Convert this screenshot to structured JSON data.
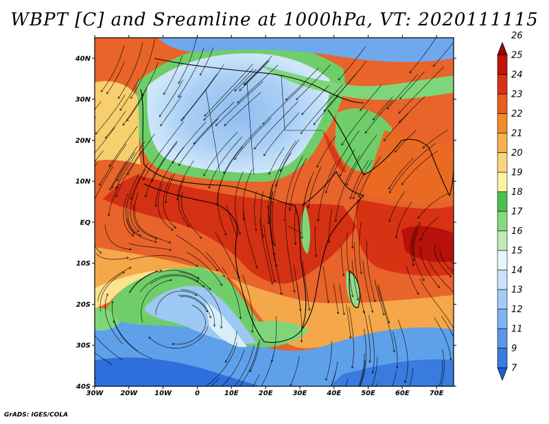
{
  "title": "WBPT [C] and Sreamline at 1000hPa, VT: 2020111115",
  "credit": "GrADS: IGES/COLA",
  "map": {
    "lon_range": [
      -30,
      75
    ],
    "lat_range": [
      -40,
      45
    ],
    "lon_ticks": [
      {
        "value": -30,
        "label": "30W"
      },
      {
        "value": -20,
        "label": "20W"
      },
      {
        "value": -10,
        "label": "10W"
      },
      {
        "value": 0,
        "label": "0"
      },
      {
        "value": 10,
        "label": "10E"
      },
      {
        "value": 20,
        "label": "20E"
      },
      {
        "value": 30,
        "label": "30E"
      },
      {
        "value": 40,
        "label": "40E"
      },
      {
        "value": 50,
        "label": "50E"
      },
      {
        "value": 60,
        "label": "60E"
      },
      {
        "value": 70,
        "label": "70E"
      }
    ],
    "lat_ticks": [
      {
        "value": 40,
        "label": "40N"
      },
      {
        "value": 30,
        "label": "30N"
      },
      {
        "value": 20,
        "label": "20N"
      },
      {
        "value": 10,
        "label": "10N"
      },
      {
        "value": 0,
        "label": "EQ"
      },
      {
        "value": -10,
        "label": "10S"
      },
      {
        "value": -20,
        "label": "20S"
      },
      {
        "value": -30,
        "label": "30S"
      },
      {
        "value": -40,
        "label": "40S"
      }
    ]
  },
  "colorbar": {
    "levels": [
      "7",
      "9",
      "11",
      "12",
      "13",
      "14",
      "15",
      "16",
      "17",
      "18",
      "19",
      "20",
      "21",
      "22",
      "23",
      "24",
      "25",
      "26"
    ],
    "colors": [
      "#1f5fd6",
      "#3a7be0",
      "#5a97ea",
      "#7fb3f2",
      "#a4cbf6",
      "#c8e2fa",
      "#e8f6fb",
      "#bfeab8",
      "#86d97e",
      "#4cbf4c",
      "#fbf2a4",
      "#f8d57a",
      "#f4b24a",
      "#f08a2c",
      "#e85f1d",
      "#d83214",
      "#c0140c",
      "#9e0508"
    ]
  }
}
